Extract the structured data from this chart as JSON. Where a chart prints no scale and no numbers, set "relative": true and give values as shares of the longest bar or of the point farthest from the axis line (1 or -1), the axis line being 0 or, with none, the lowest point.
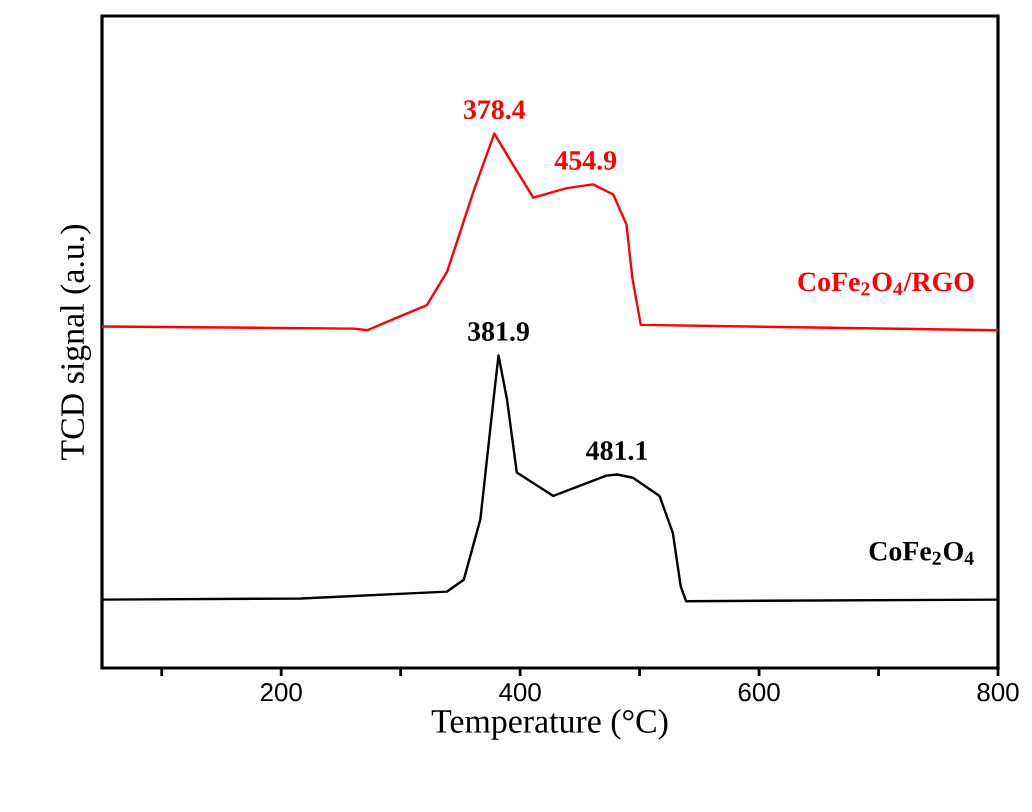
{
  "chart_data": {
    "type": "line",
    "relative": true,
    "xlabel": "Temperature (°C)",
    "ylabel": "TCD signal (a.u.)",
    "xlim": [
      50,
      800
    ],
    "xticks": [
      {
        "value": 100,
        "label": null
      },
      200,
      {
        "value": 300,
        "label": null
      },
      400,
      {
        "value": 500,
        "label": null
      },
      600,
      {
        "value": 700,
        "label": null
      },
      800
    ],
    "grid": false,
    "legend": false,
    "marker": "none",
    "line_style": "solid",
    "series": [
      {
        "name": "CoFe$_{2}$O$_{4}$/RGO",
        "color": "#ff0000",
        "x": [
          50,
          261,
          272,
          289,
          322,
          339,
          361,
          378.4,
          394,
          411,
          439,
          461,
          478,
          489,
          494,
          501,
          800
        ],
        "values": [
          0.639,
          0.635,
          0.632,
          0.648,
          0.679,
          0.742,
          0.892,
          1.0,
          0.942,
          0.88,
          0.898,
          0.905,
          0.886,
          0.83,
          0.729,
          0.642,
          0.632
        ]
      },
      {
        "name": "CoFe$_{2}$O$_{4}$",
        "color": "#000000",
        "x": [
          50,
          216.7,
          338.9,
          352.8,
          366.7,
          377.8,
          381.9,
          388.9,
          397.2,
          427.8,
          472.2,
          481.1,
          494.4,
          516.7,
          527.8,
          534.4,
          538.9,
          800
        ],
        "values": [
          0.128,
          0.13,
          0.143,
          0.165,
          0.278,
          0.504,
          0.585,
          0.504,
          0.366,
          0.322,
          0.36,
          0.362,
          0.356,
          0.322,
          0.253,
          0.153,
          0.125,
          0.128
        ]
      }
    ],
    "annotations": [
      {
        "text": "378.4",
        "x": 378.4,
        "y": 1.0
      },
      {
        "text": "454.9",
        "x": 454.9,
        "y": 0.905
      },
      {
        "text": "381.9",
        "x": 381.9,
        "y": 0.585
      },
      {
        "text": "481.1",
        "x": 481.1,
        "y": 0.362
      }
    ]
  }
}
